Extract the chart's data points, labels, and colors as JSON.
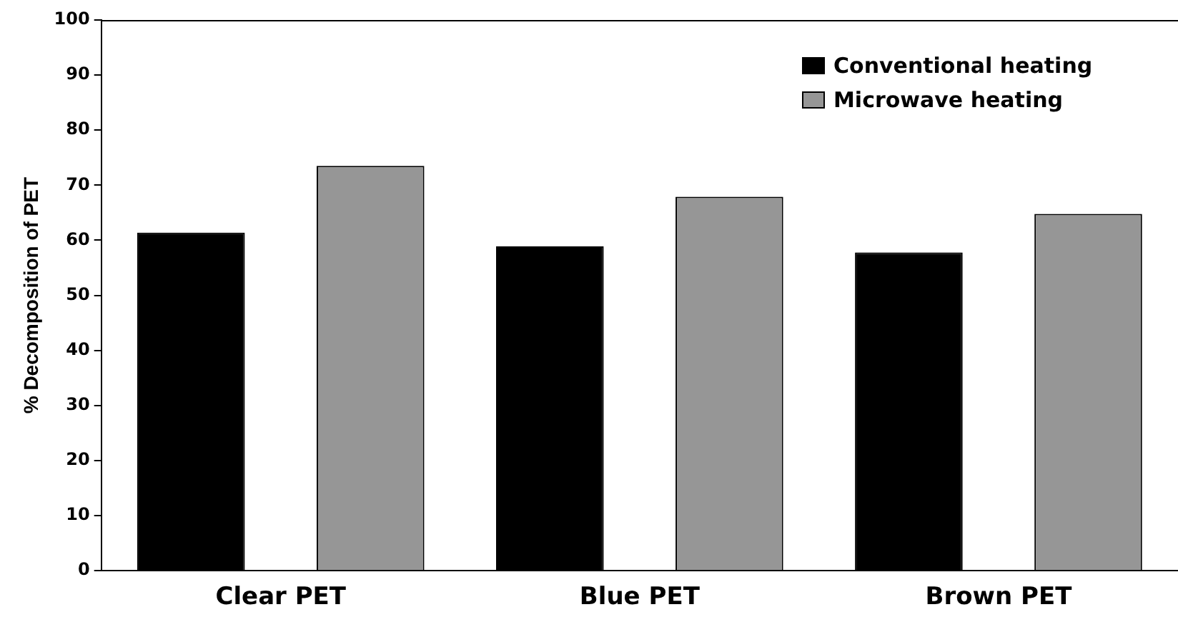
{
  "chart_data": {
    "type": "bar",
    "ylabel": "% Decomposition of PET",
    "categories": [
      "Clear PET",
      "Blue PET",
      "Brown PET"
    ],
    "series": [
      {
        "name": "Conventional heating",
        "color": "#000000",
        "values": [
          61.4,
          58.9,
          57.8
        ]
      },
      {
        "name": "Microwave heating",
        "color": "#969696",
        "values": [
          73.5,
          67.9,
          64.8
        ]
      }
    ],
    "ylim": [
      0,
      100
    ],
    "yticks": [
      0,
      10,
      20,
      30,
      40,
      50,
      60,
      70,
      80,
      90,
      100
    ],
    "grid": false,
    "legend": "top right"
  }
}
